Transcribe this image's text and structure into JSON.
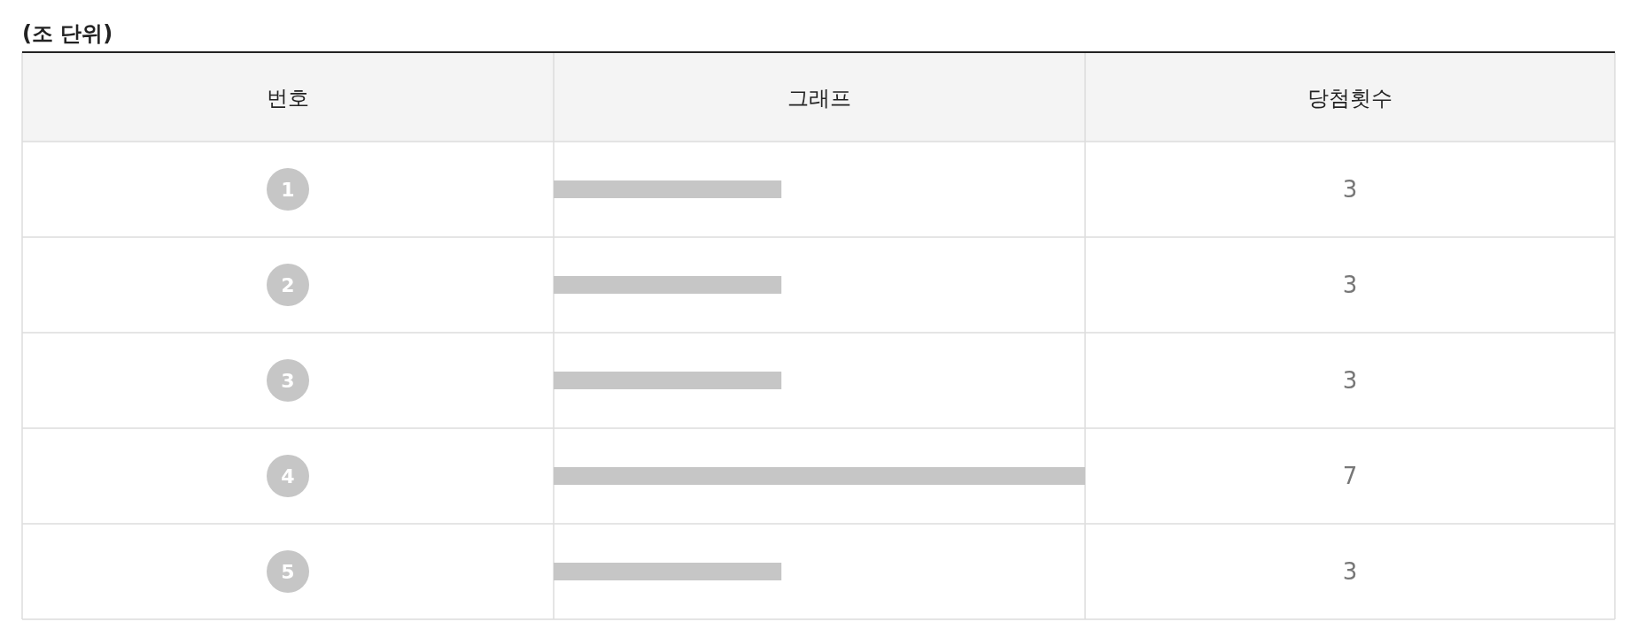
{
  "chart_data": {
    "type": "bar",
    "orientation": "horizontal",
    "title": "(조 단위)",
    "ylabel": "번호",
    "xlabel": "그래프",
    "annotations": [
      "당첨횟수"
    ],
    "categories": [
      "1",
      "2",
      "3",
      "4",
      "5"
    ],
    "values": [
      3,
      3,
      3,
      7,
      3
    ],
    "color": "#c6c6c6",
    "xlim": [
      0,
      7
    ],
    "data_labels": true,
    "grid": true
  }
}
